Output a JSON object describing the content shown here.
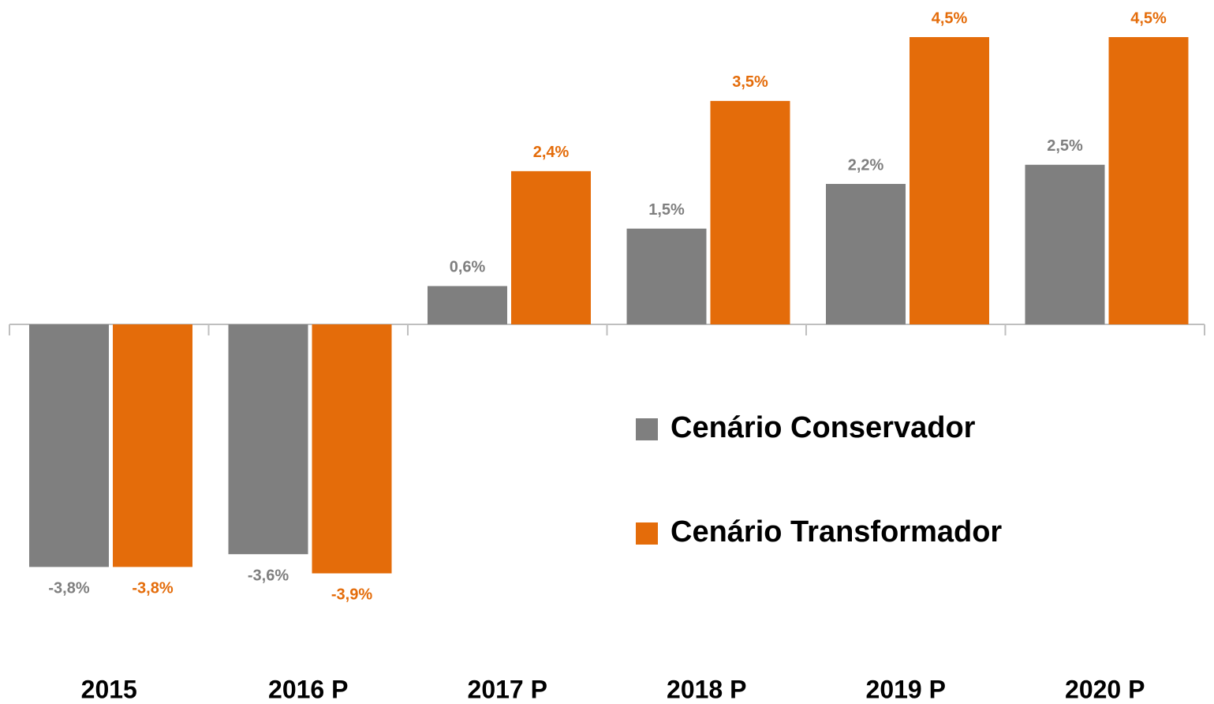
{
  "chart_data": {
    "type": "bar",
    "categories": [
      "2015",
      "2016 P",
      "2017 P",
      "2018 P",
      "2019 P",
      "2020 P"
    ],
    "series": [
      {
        "name": "Cenário Conservador",
        "color": "#7f7f7f",
        "values": [
          -3.8,
          -3.6,
          0.6,
          1.5,
          2.2,
          2.5
        ],
        "value_labels": [
          "-3,8%",
          "-3,6%",
          "0,6%",
          "1,5%",
          "2,2%",
          "2,5%"
        ]
      },
      {
        "name": "Cenário Transformador",
        "color": "#e46c0a",
        "values": [
          -3.8,
          -3.9,
          2.4,
          3.5,
          4.5,
          4.5
        ],
        "value_labels": [
          "-3,8%",
          "-3,9%",
          "2,4%",
          "3,5%",
          "4,5%",
          "4,5%"
        ]
      }
    ],
    "legend": "right"
  }
}
